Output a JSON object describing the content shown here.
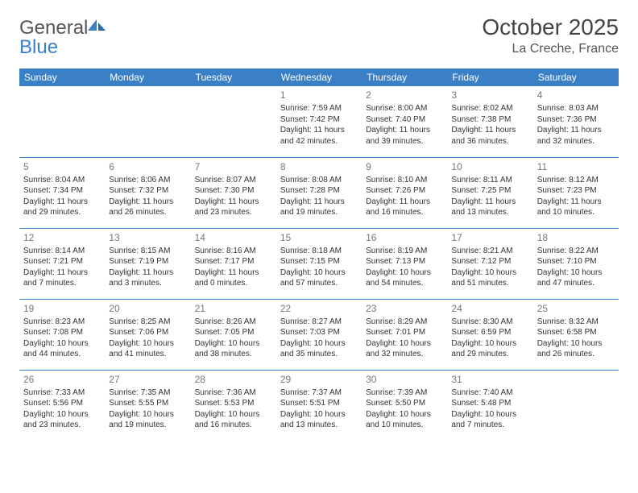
{
  "brand": {
    "word1": "General",
    "word2": "Blue"
  },
  "title": "October 2025",
  "location": "La Creche, France",
  "colors": {
    "header_bg": "#3b7fc4",
    "header_fg": "#ffffff",
    "rule": "#3b7fc4",
    "daynum": "#777777",
    "text": "#333333",
    "brand_gray": "#555555",
    "brand_blue": "#3b7fc4",
    "page_bg": "#ffffff"
  },
  "layout": {
    "cols": 7,
    "rows": 5,
    "first_weekday_index": 3
  },
  "day_headers": [
    "Sunday",
    "Monday",
    "Tuesday",
    "Wednesday",
    "Thursday",
    "Friday",
    "Saturday"
  ],
  "days": [
    {
      "n": 1,
      "sunrise": "7:59 AM",
      "sunset": "7:42 PM",
      "dl_h": 11,
      "dl_m": 42
    },
    {
      "n": 2,
      "sunrise": "8:00 AM",
      "sunset": "7:40 PM",
      "dl_h": 11,
      "dl_m": 39
    },
    {
      "n": 3,
      "sunrise": "8:02 AM",
      "sunset": "7:38 PM",
      "dl_h": 11,
      "dl_m": 36
    },
    {
      "n": 4,
      "sunrise": "8:03 AM",
      "sunset": "7:36 PM",
      "dl_h": 11,
      "dl_m": 32
    },
    {
      "n": 5,
      "sunrise": "8:04 AM",
      "sunset": "7:34 PM",
      "dl_h": 11,
      "dl_m": 29
    },
    {
      "n": 6,
      "sunrise": "8:06 AM",
      "sunset": "7:32 PM",
      "dl_h": 11,
      "dl_m": 26
    },
    {
      "n": 7,
      "sunrise": "8:07 AM",
      "sunset": "7:30 PM",
      "dl_h": 11,
      "dl_m": 23
    },
    {
      "n": 8,
      "sunrise": "8:08 AM",
      "sunset": "7:28 PM",
      "dl_h": 11,
      "dl_m": 19
    },
    {
      "n": 9,
      "sunrise": "8:10 AM",
      "sunset": "7:26 PM",
      "dl_h": 11,
      "dl_m": 16
    },
    {
      "n": 10,
      "sunrise": "8:11 AM",
      "sunset": "7:25 PM",
      "dl_h": 11,
      "dl_m": 13
    },
    {
      "n": 11,
      "sunrise": "8:12 AM",
      "sunset": "7:23 PM",
      "dl_h": 11,
      "dl_m": 10
    },
    {
      "n": 12,
      "sunrise": "8:14 AM",
      "sunset": "7:21 PM",
      "dl_h": 11,
      "dl_m": 7
    },
    {
      "n": 13,
      "sunrise": "8:15 AM",
      "sunset": "7:19 PM",
      "dl_h": 11,
      "dl_m": 3
    },
    {
      "n": 14,
      "sunrise": "8:16 AM",
      "sunset": "7:17 PM",
      "dl_h": 11,
      "dl_m": 0
    },
    {
      "n": 15,
      "sunrise": "8:18 AM",
      "sunset": "7:15 PM",
      "dl_h": 10,
      "dl_m": 57
    },
    {
      "n": 16,
      "sunrise": "8:19 AM",
      "sunset": "7:13 PM",
      "dl_h": 10,
      "dl_m": 54
    },
    {
      "n": 17,
      "sunrise": "8:21 AM",
      "sunset": "7:12 PM",
      "dl_h": 10,
      "dl_m": 51
    },
    {
      "n": 18,
      "sunrise": "8:22 AM",
      "sunset": "7:10 PM",
      "dl_h": 10,
      "dl_m": 47
    },
    {
      "n": 19,
      "sunrise": "8:23 AM",
      "sunset": "7:08 PM",
      "dl_h": 10,
      "dl_m": 44
    },
    {
      "n": 20,
      "sunrise": "8:25 AM",
      "sunset": "7:06 PM",
      "dl_h": 10,
      "dl_m": 41
    },
    {
      "n": 21,
      "sunrise": "8:26 AM",
      "sunset": "7:05 PM",
      "dl_h": 10,
      "dl_m": 38
    },
    {
      "n": 22,
      "sunrise": "8:27 AM",
      "sunset": "7:03 PM",
      "dl_h": 10,
      "dl_m": 35
    },
    {
      "n": 23,
      "sunrise": "8:29 AM",
      "sunset": "7:01 PM",
      "dl_h": 10,
      "dl_m": 32
    },
    {
      "n": 24,
      "sunrise": "8:30 AM",
      "sunset": "6:59 PM",
      "dl_h": 10,
      "dl_m": 29
    },
    {
      "n": 25,
      "sunrise": "8:32 AM",
      "sunset": "6:58 PM",
      "dl_h": 10,
      "dl_m": 26
    },
    {
      "n": 26,
      "sunrise": "7:33 AM",
      "sunset": "5:56 PM",
      "dl_h": 10,
      "dl_m": 23
    },
    {
      "n": 27,
      "sunrise": "7:35 AM",
      "sunset": "5:55 PM",
      "dl_h": 10,
      "dl_m": 19
    },
    {
      "n": 28,
      "sunrise": "7:36 AM",
      "sunset": "5:53 PM",
      "dl_h": 10,
      "dl_m": 16
    },
    {
      "n": 29,
      "sunrise": "7:37 AM",
      "sunset": "5:51 PM",
      "dl_h": 10,
      "dl_m": 13
    },
    {
      "n": 30,
      "sunrise": "7:39 AM",
      "sunset": "5:50 PM",
      "dl_h": 10,
      "dl_m": 10
    },
    {
      "n": 31,
      "sunrise": "7:40 AM",
      "sunset": "5:48 PM",
      "dl_h": 10,
      "dl_m": 7
    }
  ],
  "labels": {
    "sunrise_prefix": "Sunrise: ",
    "sunset_prefix": "Sunset: ",
    "daylight_prefix": "Daylight: ",
    "hours_word": " hours",
    "and_word": "and ",
    "minutes_word": " minutes."
  },
  "typography": {
    "title_fontsize": 28,
    "location_fontsize": 16,
    "header_fontsize": 12,
    "daynum_fontsize": 12,
    "body_fontsize": 10,
    "logo_fontsize": 24
  }
}
